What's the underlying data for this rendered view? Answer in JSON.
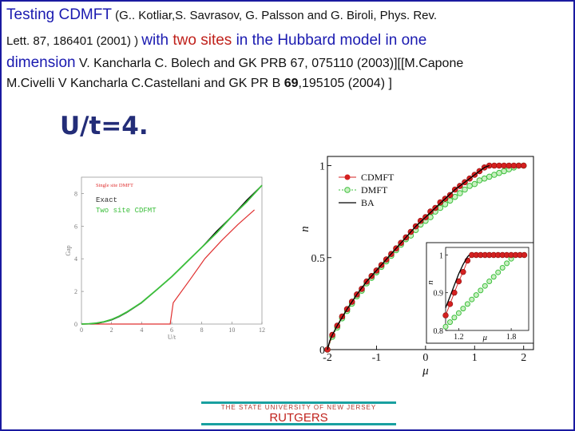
{
  "header": {
    "l1_a": "Testing    CDMFT",
    "l1_b": " (G.. Kotliar,S. Savrasov, G. Palsson and G. Biroli, Phys. Rev.",
    "l2_a": "Lett. 87, 186401 (2001) ) ",
    "l2_b": " with ",
    "l2_c": "two sites",
    "l2_d": " in  the Hubbard model in one",
    "l3_a": "dimension",
    "l3_b": " V. Kancharla C. Bolech and GK  PRB 67, 075110 (2003)][[M.Capone",
    "l4_a": "M.Civelli  V Kancharla C.Castellani and GK  PR B ",
    "l4_b": "69",
    "l4_c": ",195105 (2004) ]"
  },
  "subtitle": "U/t=4.",
  "footer": {
    "university": "THE STATE UNIVERSITY OF NEW JERSEY",
    "name": "RUTGERS"
  },
  "colors": {
    "accent": "#1a1aa0",
    "footer_line": "#19a0a0",
    "cdmft": "#d42020",
    "dmft": "#3cbf3c"
  },
  "chart_data": [
    {
      "type": "line",
      "xlabel": "U/t",
      "ylabel": "Gap",
      "xlim": [
        0,
        12
      ],
      "ylim": [
        0,
        9
      ],
      "xticks": [
        "0",
        "2",
        "4",
        "6",
        "8",
        "10",
        "12"
      ],
      "yticks": [
        "0",
        "2",
        "4",
        "6",
        "8"
      ],
      "series": [
        {
          "name": "Single site DMFT",
          "color": "#e03030",
          "x": [
            0,
            5.9,
            6.1,
            7.2,
            8.2,
            9.3,
            10.4,
            11.5
          ],
          "y": [
            0,
            0,
            1.3,
            2.7,
            4.0,
            5.1,
            6.1,
            7.0
          ]
        },
        {
          "name": "Exact",
          "color": "#000000",
          "x": [
            0,
            0.5,
            1,
            1.5,
            2,
            2.5,
            3,
            3.5,
            4,
            5,
            6,
            7,
            8,
            9,
            10,
            11,
            12
          ],
          "y": [
            0,
            0.01,
            0.04,
            0.12,
            0.25,
            0.45,
            0.7,
            1.0,
            1.3,
            2.1,
            2.9,
            3.8,
            4.7,
            5.7,
            6.6,
            7.6,
            8.5
          ]
        },
        {
          "name": "Two site CDFMT",
          "color": "#3cbf3c",
          "x": [
            0,
            0.5,
            1,
            1.5,
            2,
            2.5,
            3,
            3.5,
            4,
            5,
            6,
            7,
            8,
            9,
            10,
            11,
            12
          ],
          "y": [
            0,
            0.02,
            0.06,
            0.14,
            0.28,
            0.48,
            0.73,
            1.02,
            1.32,
            2.1,
            2.9,
            3.8,
            4.7,
            5.6,
            6.6,
            7.5,
            8.5
          ]
        }
      ]
    },
    {
      "type": "line",
      "xlabel": "μ",
      "ylabel": "n",
      "xlim": [
        -2,
        2.2
      ],
      "ylim": [
        0,
        1.05
      ],
      "xticks": [
        "-2",
        "-1",
        "0",
        "1",
        "2"
      ],
      "yticks": [
        "0",
        "0.5",
        "1"
      ],
      "legend": "top-left",
      "series": [
        {
          "name": "CDMFT",
          "color": "#d42020",
          "marker": "circle-filled",
          "x": [
            -2,
            -1.9,
            -1.8,
            -1.7,
            -1.6,
            -1.5,
            -1.4,
            -1.3,
            -1.2,
            -1.1,
            -1.0,
            -0.9,
            -0.8,
            -0.7,
            -0.6,
            -0.5,
            -0.4,
            -0.3,
            -0.2,
            -0.1,
            0.0,
            0.1,
            0.2,
            0.3,
            0.4,
            0.5,
            0.6,
            0.7,
            0.8,
            0.9,
            1.0,
            1.1,
            1.2,
            1.3,
            1.4,
            1.5,
            1.6,
            1.7,
            1.8,
            1.9,
            2.0
          ],
          "y": [
            0.0,
            0.08,
            0.13,
            0.18,
            0.22,
            0.26,
            0.3,
            0.33,
            0.37,
            0.4,
            0.43,
            0.46,
            0.49,
            0.52,
            0.55,
            0.58,
            0.61,
            0.64,
            0.67,
            0.7,
            0.72,
            0.75,
            0.77,
            0.8,
            0.82,
            0.84,
            0.87,
            0.89,
            0.91,
            0.93,
            0.95,
            0.97,
            0.99,
            1.0,
            1.0,
            1.0,
            1.0,
            1.0,
            1.0,
            1.0,
            1.0
          ]
        },
        {
          "name": "DMFT",
          "color": "#3cbf3c",
          "marker": "circle-open",
          "x": [
            -2,
            -1.9,
            -1.8,
            -1.7,
            -1.6,
            -1.5,
            -1.4,
            -1.3,
            -1.2,
            -1.1,
            -1.0,
            -0.9,
            -0.8,
            -0.7,
            -0.6,
            -0.5,
            -0.4,
            -0.3,
            -0.2,
            -0.1,
            0.0,
            0.1,
            0.2,
            0.3,
            0.4,
            0.5,
            0.6,
            0.7,
            0.8,
            0.9,
            1.0,
            1.1,
            1.2,
            1.3,
            1.4,
            1.5,
            1.6,
            1.7,
            1.8,
            1.9,
            2.0
          ],
          "y": [
            0.0,
            0.07,
            0.12,
            0.17,
            0.21,
            0.25,
            0.29,
            0.32,
            0.36,
            0.39,
            0.42,
            0.45,
            0.48,
            0.51,
            0.54,
            0.57,
            0.6,
            0.62,
            0.65,
            0.68,
            0.7,
            0.72,
            0.75,
            0.77,
            0.79,
            0.81,
            0.83,
            0.85,
            0.87,
            0.89,
            0.9,
            0.92,
            0.93,
            0.94,
            0.95,
            0.96,
            0.97,
            0.98,
            0.99,
            1.0,
            1.0
          ]
        },
        {
          "name": "BA",
          "color": "#000000",
          "marker": "none",
          "x": [
            -2,
            -1.95,
            -1.9,
            -1.8,
            -1.6,
            -1.4,
            -1.2,
            -1.0,
            -0.8,
            -0.6,
            -0.4,
            -0.2,
            0.0,
            0.2,
            0.4,
            0.6,
            0.8,
            1.0,
            1.2,
            1.3
          ],
          "y": [
            0.0,
            0.05,
            0.08,
            0.13,
            0.22,
            0.3,
            0.37,
            0.43,
            0.49,
            0.55,
            0.61,
            0.67,
            0.72,
            0.77,
            0.82,
            0.87,
            0.91,
            0.95,
            0.99,
            1.0
          ]
        }
      ]
    },
    {
      "type": "line",
      "xlabel": "μ",
      "ylabel": "n",
      "xlim": [
        1.05,
        2.0
      ],
      "ylim": [
        0.8,
        1.02
      ],
      "xticks": [
        "1.2",
        "1.8"
      ],
      "yticks": [
        "0.8",
        "0.9",
        "1"
      ],
      "series": [
        {
          "name": "CDMFT",
          "color": "#d42020",
          "marker": "circle-filled",
          "x": [
            1.05,
            1.1,
            1.15,
            1.2,
            1.25,
            1.3,
            1.35,
            1.4,
            1.45,
            1.5,
            1.55,
            1.6,
            1.65,
            1.7,
            1.75,
            1.8,
            1.85,
            1.9,
            1.95
          ],
          "y": [
            0.84,
            0.87,
            0.9,
            0.93,
            0.955,
            0.985,
            1.0,
            1.0,
            1.0,
            1.0,
            1.0,
            1.0,
            1.0,
            1.0,
            1.0,
            1.0,
            1.0,
            1.0,
            1.0
          ]
        },
        {
          "name": "DMFT",
          "color": "#3cbf3c",
          "marker": "circle-open",
          "x": [
            1.05,
            1.1,
            1.15,
            1.2,
            1.25,
            1.3,
            1.35,
            1.4,
            1.45,
            1.5,
            1.55,
            1.6,
            1.65,
            1.7,
            1.75,
            1.8,
            1.85,
            1.9,
            1.95
          ],
          "y": [
            0.81,
            0.822,
            0.834,
            0.846,
            0.858,
            0.87,
            0.882,
            0.894,
            0.906,
            0.918,
            0.93,
            0.942,
            0.954,
            0.966,
            0.978,
            0.99,
            1.0,
            1.0,
            1.0
          ]
        },
        {
          "name": "BA",
          "color": "#000000",
          "marker": "none",
          "x": [
            1.05,
            1.1,
            1.15,
            1.2,
            1.25,
            1.3,
            1.32
          ],
          "y": [
            0.86,
            0.89,
            0.92,
            0.95,
            0.975,
            0.995,
            1.0
          ]
        }
      ]
    }
  ]
}
